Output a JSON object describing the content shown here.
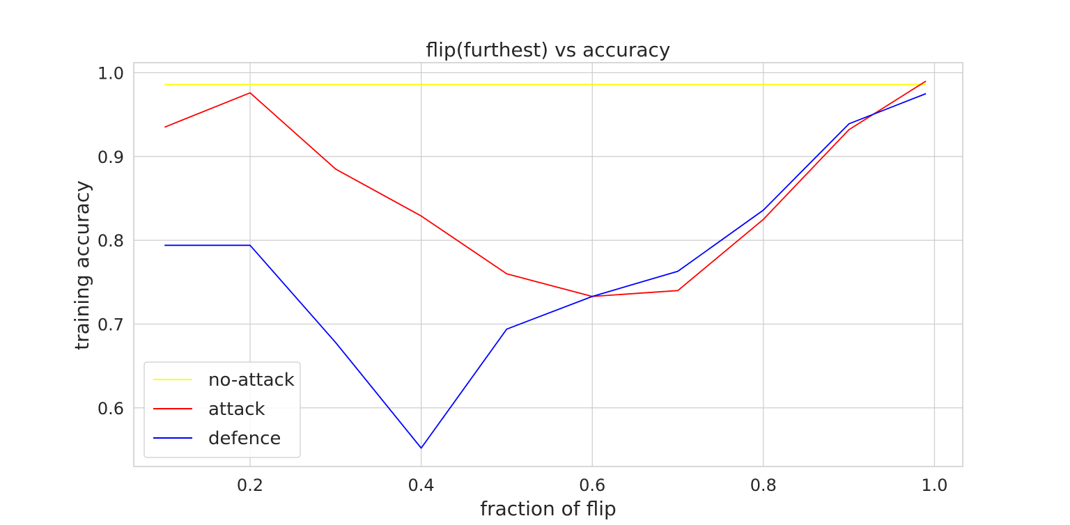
{
  "chart_data": {
    "type": "line",
    "title": "flip(furthest) vs accuracy",
    "xlabel": "fraction of flip",
    "ylabel": "training accuracy",
    "xlim": [
      0.064,
      1.033
    ],
    "ylim": [
      0.53,
      1.012
    ],
    "xticks": [
      0.2,
      0.4,
      0.6,
      0.8,
      1.0
    ],
    "xtick_labels": [
      "0.2",
      "0.4",
      "0.6",
      "0.8",
      "1.0"
    ],
    "yticks": [
      0.6,
      0.7,
      0.8,
      0.9,
      1.0
    ],
    "ytick_labels": [
      "0.6",
      "0.7",
      "0.8",
      "0.9",
      "1.0"
    ],
    "grid": true,
    "legend_position": "lower-left",
    "x": [
      0.1,
      0.2,
      0.3,
      0.4,
      0.5,
      0.6,
      0.7,
      0.8,
      0.9,
      0.99
    ],
    "series": [
      {
        "name": "no-attack",
        "color": "#ffff00",
        "values": [
          0.986,
          0.986,
          0.986,
          0.986,
          0.986,
          0.986,
          0.986,
          0.986,
          0.986,
          0.986
        ]
      },
      {
        "name": "attack",
        "color": "#ff0000",
        "values": [
          0.935,
          0.976,
          0.885,
          0.829,
          0.76,
          0.733,
          0.74,
          0.825,
          0.932,
          0.99
        ]
      },
      {
        "name": "defence",
        "color": "#0000ff",
        "values": [
          0.794,
          0.794,
          0.678,
          0.552,
          0.694,
          0.733,
          0.763,
          0.836,
          0.939,
          0.975
        ]
      }
    ]
  }
}
